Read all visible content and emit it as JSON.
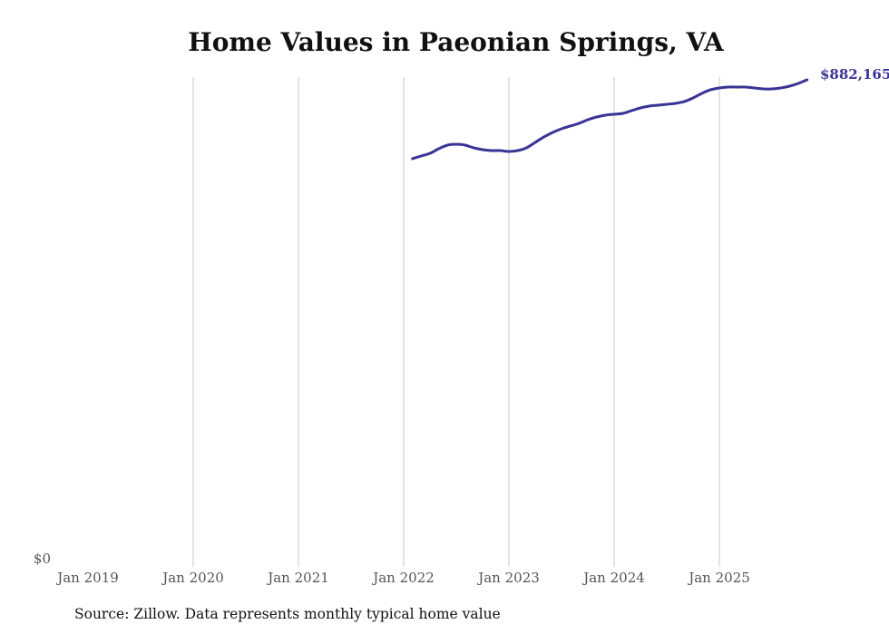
{
  "chart_data": {
    "type": "line",
    "title": "Home Values in Paeonian Springs, VA",
    "xlabel": "",
    "ylabel": "",
    "x_ticks": [
      "Jan 2019",
      "Jan 2020",
      "Jan 2021",
      "Jan 2022",
      "Jan 2023",
      "Jan 2024",
      "Jan 2025"
    ],
    "y_ticks": [
      "$0"
    ],
    "ylim": [
      0,
      882165
    ],
    "grid": "vertical",
    "line_color": "#3a3496",
    "end_label": "$882,165",
    "source": "Source: Zillow. Data represents monthly typical home value",
    "series": [
      {
        "name": "Typical home value",
        "x": [
          "2022-02",
          "2022-03",
          "2022-04",
          "2022-05",
          "2022-06",
          "2022-07",
          "2022-08",
          "2022-09",
          "2022-10",
          "2022-11",
          "2022-12",
          "2023-01",
          "2023-02",
          "2023-03",
          "2023-04",
          "2023-05",
          "2023-06",
          "2023-07",
          "2023-08",
          "2023-09",
          "2023-10",
          "2023-11",
          "2023-12",
          "2024-01",
          "2024-02",
          "2024-03",
          "2024-04",
          "2024-05",
          "2024-06",
          "2024-07",
          "2024-08",
          "2024-09",
          "2024-10",
          "2024-11",
          "2024-12",
          "2025-01",
          "2025-02",
          "2025-03",
          "2025-04",
          "2025-05",
          "2025-06",
          "2025-07",
          "2025-08",
          "2025-09",
          "2025-10",
          "2025-11"
        ],
        "values": [
          739260,
          744188,
          749117,
          757331,
          763902,
          765545,
          763902,
          758974,
          755688,
          754045,
          754045,
          752402,
          754045,
          758974,
          768830,
          778687,
          786901,
          793472,
          798401,
          803329,
          809900,
          814829,
          818114,
          819757,
          821400,
          826328,
          831257,
          834542,
          836185,
          837828,
          839471,
          842756,
          849328,
          857542,
          864113,
          867398,
          869041,
          869041,
          869041,
          867398,
          865756,
          865756,
          867398,
          870684,
          875612,
          882165
        ]
      }
    ]
  }
}
